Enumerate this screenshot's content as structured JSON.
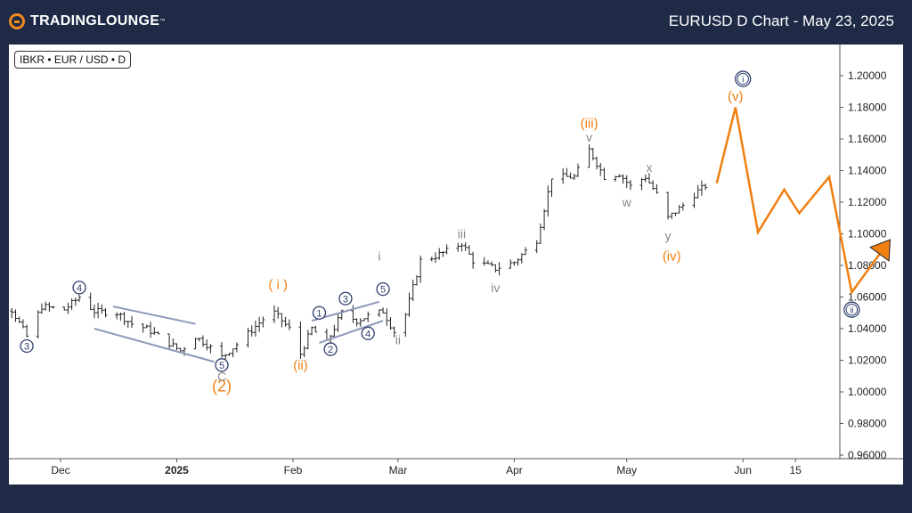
{
  "header": {
    "logo_text": "TradingLounge",
    "logo_tm": "™",
    "title": "EURUSD D Chart - May 23, 2025"
  },
  "badge": "IBKR • EUR / USD • D",
  "colors": {
    "orange": "#f07f10",
    "navy": "#2f3f6e",
    "gray": "#888888",
    "line": "#8e99b8"
  },
  "chart_data": {
    "type": "ohlc",
    "y_ticks": [
      "1.20000",
      "1.18000",
      "1.16000",
      "1.14000",
      "1.12000",
      "1.10000",
      "1.08000",
      "1.06000",
      "1.04000",
      "1.02000",
      "1.00000",
      "0.98000",
      "0.96000"
    ],
    "ylim": [
      0.96,
      1.205
    ],
    "x_ticks": [
      "Dec",
      "2025",
      "Feb",
      "Mar",
      "Apr",
      "May",
      "Jun",
      "15"
    ],
    "x_tick_bold": [
      "2025"
    ],
    "anchors": [
      [
        "2024-11-06",
        1.055
      ],
      [
        "2024-11-12",
        1.058
      ],
      [
        "2024-11-15",
        1.053
      ],
      [
        "2024-11-18",
        1.052
      ],
      [
        "2024-11-22",
        1.035
      ],
      [
        "2024-11-26",
        1.054
      ],
      [
        "2024-12-02",
        1.052
      ],
      [
        "2024-12-06",
        1.06
      ],
      [
        "2024-12-10",
        1.051
      ],
      [
        "2024-12-16",
        1.05
      ],
      [
        "2024-12-20",
        1.043
      ],
      [
        "2024-12-24",
        1.04
      ],
      [
        "2025-01-02",
        1.026
      ],
      [
        "2025-01-06",
        1.035
      ],
      [
        "2025-01-09",
        1.03
      ],
      [
        "2025-01-13",
        1.022
      ],
      [
        "2025-01-17",
        1.03
      ],
      [
        "2025-01-24",
        1.046
      ],
      [
        "2025-01-27",
        1.05
      ],
      [
        "2025-01-31",
        1.04
      ],
      [
        "2025-02-03",
        1.024
      ],
      [
        "2025-02-06",
        1.04
      ],
      [
        "2025-02-10",
        1.031
      ],
      [
        "2025-02-14",
        1.05
      ],
      [
        "2025-02-18",
        1.045
      ],
      [
        "2025-02-21",
        1.048
      ],
      [
        "2025-02-25",
        1.051
      ],
      [
        "2025-02-28",
        1.038
      ],
      [
        "2025-03-03",
        1.049
      ],
      [
        "2025-03-07",
        1.083
      ],
      [
        "2025-03-10",
        1.085
      ],
      [
        "2025-03-14",
        1.089
      ],
      [
        "2025-03-18",
        1.094
      ],
      [
        "2025-03-21",
        1.083
      ],
      [
        "2025-03-27",
        1.078
      ],
      [
        "2025-04-01",
        1.082
      ],
      [
        "2025-04-07",
        1.096
      ],
      [
        "2025-04-11",
        1.136
      ],
      [
        "2025-04-17",
        1.136
      ],
      [
        "2025-04-21",
        1.153
      ],
      [
        "2025-04-25",
        1.136
      ],
      [
        "2025-04-29",
        1.138
      ],
      [
        "2025-05-02",
        1.13
      ],
      [
        "2025-05-06",
        1.136
      ],
      [
        "2025-05-09",
        1.125
      ],
      [
        "2025-05-12",
        1.11
      ],
      [
        "2025-05-16",
        1.118
      ],
      [
        "2025-05-20",
        1.127
      ],
      [
        "2025-05-23",
        1.132
      ]
    ],
    "projection": [
      [
        "2025-05-25",
        1.132
      ],
      [
        "2025-05-30",
        1.18
      ],
      [
        "2025-06-05",
        1.101
      ],
      [
        "2025-06-12",
        1.128
      ],
      [
        "2025-06-16",
        1.113
      ],
      [
        "2025-06-24",
        1.136
      ],
      [
        "2025-06-30",
        1.063
      ],
      [
        "2025-07-08",
        1.089
      ]
    ],
    "wave_labels": [
      {
        "text": "(2)",
        "date": "2025-01-13",
        "price": 1.003,
        "color": "orange",
        "size": 18
      },
      {
        "text": "C",
        "date": "2025-01-13",
        "price": 1.01,
        "color": "gray",
        "size": 14
      },
      {
        "text": "5",
        "date": "2025-01-13",
        "price": 1.017,
        "color": "navy",
        "circle": true
      },
      {
        "text": "3",
        "date": "2024-11-22",
        "price": 1.029,
        "color": "navy",
        "circle": true
      },
      {
        "text": "4",
        "date": "2024-12-06",
        "price": 1.066,
        "color": "navy",
        "circle": true
      },
      {
        "text": "( i )",
        "date": "2025-01-28",
        "price": 1.068,
        "color": "orange",
        "size": 15
      },
      {
        "text": "(ii)",
        "date": "2025-02-03",
        "price": 1.017,
        "color": "orange",
        "size": 15
      },
      {
        "text": "1",
        "date": "2025-02-08",
        "price": 1.05,
        "color": "navy",
        "circle": true
      },
      {
        "text": "2",
        "date": "2025-02-11",
        "price": 1.027,
        "color": "navy",
        "circle": true
      },
      {
        "text": "3",
        "date": "2025-02-15",
        "price": 1.059,
        "color": "navy",
        "circle": true
      },
      {
        "text": "4",
        "date": "2025-02-21",
        "price": 1.037,
        "color": "navy",
        "circle": true
      },
      {
        "text": "5",
        "date": "2025-02-25",
        "price": 1.065,
        "color": "navy",
        "circle": true
      },
      {
        "text": "i",
        "date": "2025-02-24",
        "price": 1.086,
        "color": "gray",
        "size": 14
      },
      {
        "text": "ii",
        "date": "2025-03-01",
        "price": 1.033,
        "color": "gray",
        "size": 14
      },
      {
        "text": "iii",
        "date": "2025-03-18",
        "price": 1.1,
        "color": "gray",
        "size": 14
      },
      {
        "text": "iv",
        "date": "2025-03-27",
        "price": 1.066,
        "color": "gray",
        "size": 14
      },
      {
        "text": "(iii)",
        "date": "2025-04-21",
        "price": 1.17,
        "color": "orange",
        "size": 15
      },
      {
        "text": "v",
        "date": "2025-04-21",
        "price": 1.161,
        "color": "gray",
        "size": 14
      },
      {
        "text": "w",
        "date": "2025-05-01",
        "price": 1.12,
        "color": "gray",
        "size": 14
      },
      {
        "text": "x",
        "date": "2025-05-07",
        "price": 1.142,
        "color": "gray",
        "size": 14
      },
      {
        "text": "y",
        "date": "2025-05-12",
        "price": 1.099,
        "color": "gray",
        "size": 14
      },
      {
        "text": "(iv)",
        "date": "2025-05-13",
        "price": 1.086,
        "color": "orange",
        "size": 15
      },
      {
        "text": "(v)",
        "date": "2025-05-30",
        "price": 1.187,
        "color": "orange",
        "size": 15
      },
      {
        "text": "i",
        "date": "2025-06-01",
        "price": 1.198,
        "color": "navy",
        "circle": true,
        "double": true
      },
      {
        "text": "ii",
        "date": "2025-06-30",
        "price": 1.052,
        "color": "navy",
        "circle": true,
        "double": true
      }
    ],
    "trend_lines": [
      {
        "from": [
          "2024-12-15",
          1.054
        ],
        "to": [
          "2025-01-06",
          1.043
        ]
      },
      {
        "from": [
          "2024-12-10",
          1.04
        ],
        "to": [
          "2025-01-11",
          1.019
        ]
      },
      {
        "from": [
          "2025-02-06",
          1.045
        ],
        "to": [
          "2025-02-24",
          1.057
        ]
      },
      {
        "from": [
          "2025-02-08",
          1.031
        ],
        "to": [
          "2025-02-25",
          1.045
        ]
      }
    ]
  }
}
